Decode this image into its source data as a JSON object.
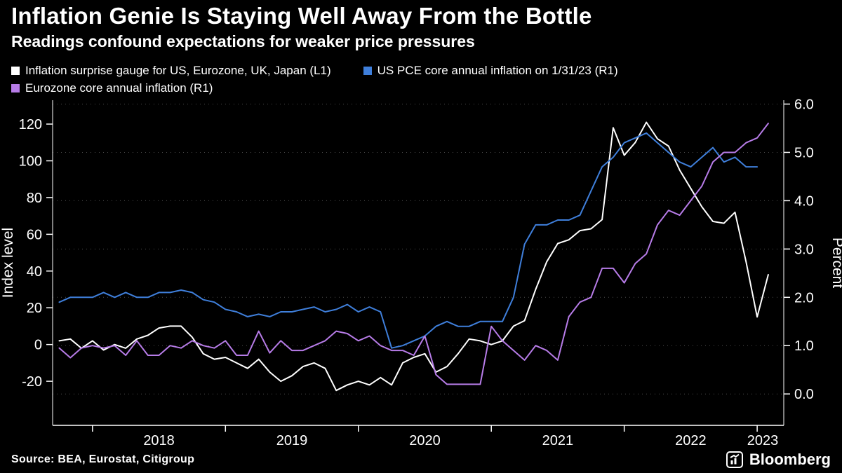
{
  "colors": {
    "background": "#000000",
    "text": "#ffffff",
    "grid": "#4d4d4d",
    "axis": "#ffffff",
    "series_white": "#ffffff",
    "series_blue": "#3f7fdb",
    "series_purple": "#b77ce8"
  },
  "header": {
    "title": "Inflation Genie Is Staying Well Away From the Bottle",
    "subtitle": "Readings confound expectations for weaker price pressures"
  },
  "legend": {
    "items": [
      {
        "label": "Inflation surprise gauge for US, Eurozone, UK, Japan (L1)",
        "color": "#ffffff"
      },
      {
        "label": "US PCE core annual inflation on 1/31/23 (R1)",
        "color": "#3f7fdb"
      },
      {
        "label": "Eurozone core annual inflation (R1)",
        "color": "#b77ce8"
      }
    ]
  },
  "footer": {
    "source_label": "Source: BEA, Eurostat, Citigroup",
    "brand": "Bloomberg",
    "brand_icon": "line-chart-glyph"
  },
  "chart_data": {
    "type": "line",
    "title": "Inflation Genie Is Staying Well Away From the Bottle",
    "subtitle": "Readings confound expectations for weaker price pressures",
    "legend_position": "top",
    "grid": "dotted-horizontal",
    "left_axis": {
      "label": "Index level",
      "ticks": [
        -20,
        0,
        20,
        40,
        60,
        80,
        100,
        120
      ],
      "range": [
        -44,
        133
      ]
    },
    "right_axis": {
      "label": "Percent",
      "ticks": [
        0,
        1,
        2,
        3,
        4,
        5,
        6
      ],
      "tick_labels": [
        "0.0",
        "1.0",
        "2.0",
        "3.0",
        "4.0",
        "5.0",
        "6.0"
      ],
      "range": [
        -0.65,
        6.08
      ]
    },
    "x_axis": {
      "years": [
        2018,
        2019,
        2020,
        2021,
        2022,
        2023
      ],
      "range": [
        2017.7,
        2023.2
      ]
    },
    "x_start": 2017.75,
    "x_step": 0.08333,
    "series": [
      {
        "name": "Inflation surprise gauge for US, Eurozone, UK, Japan (L1)",
        "axis": "left",
        "color": "#ffffff",
        "values": [
          2,
          3,
          -2,
          2,
          -3,
          0,
          -2,
          3,
          5,
          9,
          10,
          10,
          4,
          -5,
          -8,
          -7,
          -10,
          -13,
          -8,
          -15,
          -20,
          -17,
          -12,
          -10,
          -13,
          -25,
          -22,
          -20,
          -22,
          -18,
          -22,
          -10,
          -7,
          -5,
          -15,
          -12,
          -5,
          3,
          2,
          0,
          2,
          10,
          13,
          30,
          45,
          55,
          57,
          62,
          63,
          68,
          118,
          103,
          110,
          121,
          112,
          108,
          95,
          85,
          75,
          67,
          66,
          72,
          45,
          15,
          38
        ]
      },
      {
        "name": "US PCE core annual inflation on 1/31/23 (R1)",
        "axis": "right",
        "color": "#3f7fdb",
        "values": [
          1.9,
          2.0,
          2.0,
          2.0,
          2.1,
          2.0,
          2.1,
          2.0,
          2.0,
          2.1,
          2.1,
          2.15,
          2.1,
          1.95,
          1.9,
          1.75,
          1.7,
          1.6,
          1.65,
          1.6,
          1.7,
          1.7,
          1.75,
          1.8,
          1.7,
          1.75,
          1.85,
          1.7,
          1.8,
          1.7,
          0.95,
          1.0,
          1.1,
          1.2,
          1.4,
          1.5,
          1.4,
          1.4,
          1.5,
          1.5,
          1.5,
          2.0,
          3.1,
          3.5,
          3.5,
          3.6,
          3.6,
          3.7,
          4.2,
          4.7,
          4.9,
          5.2,
          5.3,
          5.4,
          5.2,
          5.0,
          4.8,
          4.7,
          4.9,
          5.1,
          4.8,
          4.9,
          4.7,
          4.7,
          null
        ]
      },
      {
        "name": "Eurozone core annual inflation (R1)",
        "axis": "right",
        "color": "#b77ce8",
        "values": [
          0.95,
          0.75,
          0.95,
          1.0,
          0.95,
          1.0,
          0.8,
          1.1,
          0.8,
          0.8,
          1.0,
          0.95,
          1.1,
          1.0,
          0.95,
          1.1,
          0.8,
          0.8,
          1.3,
          0.85,
          1.1,
          0.9,
          0.9,
          1.0,
          1.1,
          1.3,
          1.25,
          1.1,
          1.2,
          1.0,
          0.9,
          0.9,
          0.8,
          1.2,
          0.4,
          0.2,
          0.2,
          0.2,
          0.2,
          1.4,
          1.1,
          0.9,
          0.7,
          1.0,
          0.9,
          0.7,
          1.6,
          1.9,
          2.0,
          2.6,
          2.6,
          2.3,
          2.7,
          2.9,
          3.5,
          3.8,
          3.7,
          4.0,
          4.3,
          4.8,
          5.0,
          5.0,
          5.2,
          5.3,
          5.6
        ]
      }
    ]
  }
}
